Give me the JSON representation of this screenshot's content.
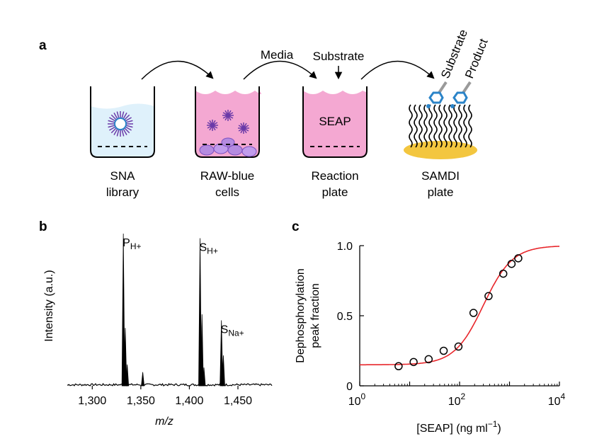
{
  "panels": {
    "a": "a",
    "b": "b",
    "c": "c"
  },
  "panel_a": {
    "wells": [
      {
        "line1": "SNA",
        "line2": "library"
      },
      {
        "line1": "RAW-blue",
        "line2": "cells"
      },
      {
        "line1": "Reaction",
        "line2": "plate"
      },
      {
        "line1": "SAMDI",
        "line2": "plate"
      }
    ],
    "media_label": "Media",
    "substrate_label": "Substrate",
    "seap_label": "SEAP",
    "slanted_labels": {
      "substrate": "Substrate",
      "product": "Product"
    },
    "colors": {
      "sna_fluid": "#dff1fb",
      "cell_fluid": "#f4a8d2",
      "gold": "#f3c63f",
      "molecule": "#2b84c8",
      "nanoparticle": "#6a3aa8"
    }
  },
  "chart_data": [
    {
      "type": "line",
      "panel": "b",
      "xlabel": "m/z",
      "ylabel": "Intensity (a.u.)",
      "x_ticks": [
        "1,300",
        "1,350",
        "1,400",
        "1,450"
      ],
      "xlim": [
        1275,
        1485
      ],
      "peaks": [
        {
          "label": "P",
          "subscript": "H+",
          "x": 1332,
          "rel_intensity": 1.0
        },
        {
          "x": 1334,
          "rel_intensity": 0.38
        },
        {
          "x": 1336,
          "rel_intensity": 0.14
        },
        {
          "x": 1352,
          "rel_intensity": 0.09
        },
        {
          "label": "S",
          "subscript": "H+",
          "x": 1411,
          "rel_intensity": 0.97
        },
        {
          "x": 1413,
          "rel_intensity": 0.47
        },
        {
          "x": 1415,
          "rel_intensity": 0.12
        },
        {
          "label": "S",
          "subscript": "Na+",
          "x": 1433,
          "rel_intensity": 0.43
        },
        {
          "x": 1435,
          "rel_intensity": 0.2
        }
      ]
    },
    {
      "type": "scatter",
      "panel": "c",
      "xlabel": "[SEAP] (ng ml",
      "xlabel_sup": "−1",
      "xlabel_close": ")",
      "ylabel_line1": "Dephosphorylation",
      "ylabel_line2": "peak fraction",
      "x_scale": "log",
      "xlim": [
        1,
        10000
      ],
      "ylim": [
        0,
        1.0
      ],
      "x_ticks": [
        {
          "base": "10",
          "exp": "0"
        },
        {
          "base": "10",
          "exp": "2"
        },
        {
          "base": "10",
          "exp": "4"
        }
      ],
      "y_ticks": [
        "0",
        "0.5",
        "1.0"
      ],
      "points": [
        {
          "x": 6,
          "y": 0.14
        },
        {
          "x": 12,
          "y": 0.17
        },
        {
          "x": 24,
          "y": 0.19
        },
        {
          "x": 48,
          "y": 0.25
        },
        {
          "x": 95,
          "y": 0.28
        },
        {
          "x": 190,
          "y": 0.52
        },
        {
          "x": 380,
          "y": 0.64
        },
        {
          "x": 750,
          "y": 0.8
        },
        {
          "x": 1100,
          "y": 0.87
        },
        {
          "x": 1500,
          "y": 0.91
        }
      ],
      "fit": {
        "bottom": 0.15,
        "top": 1.0,
        "ec50": 300,
        "hill": 1.5
      },
      "colors": {
        "fit": "#e8262b",
        "points": "#000000"
      }
    }
  ]
}
